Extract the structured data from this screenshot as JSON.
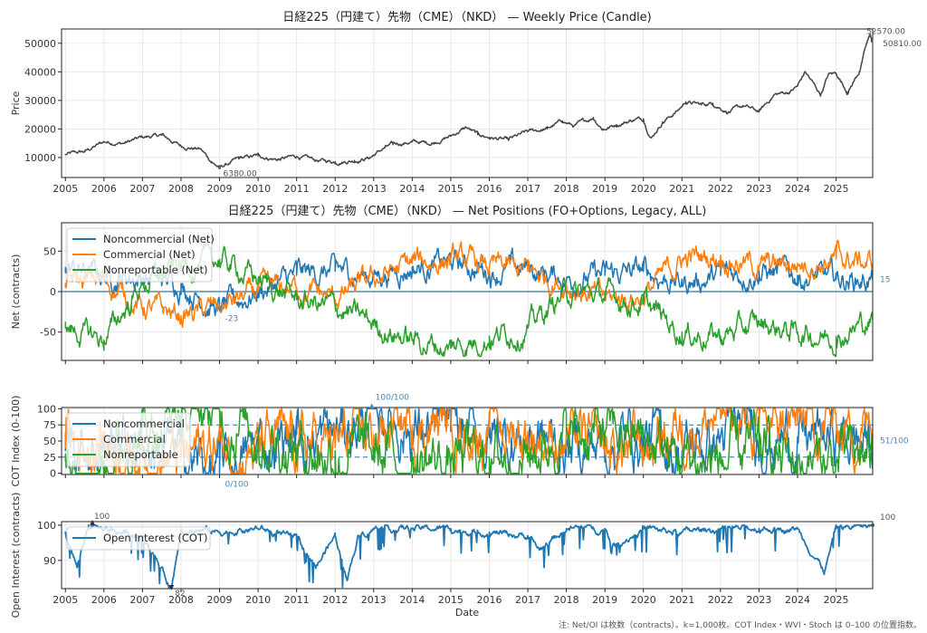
{
  "chart_data": [
    {
      "id": "price",
      "type": "line",
      "title": "日経225（円建て）先物（CME）（NKD） — Weekly Price (Candle)",
      "ylabel": "Price",
      "xlim": [
        2004.9,
        2025.95
      ],
      "ylim": [
        3000,
        55000
      ],
      "yticks": [
        10000,
        20000,
        30000,
        40000,
        50000
      ],
      "x_ticks": [
        "2005",
        "2006",
        "2007",
        "2008",
        "2009",
        "2010",
        "2011",
        "2012",
        "2013",
        "2014",
        "2015",
        "2016",
        "2017",
        "2018",
        "2019",
        "2020",
        "2021",
        "2022",
        "2023",
        "2024",
        "2025"
      ],
      "grid": true,
      "color": "#444444",
      "series": [
        {
          "values_approx": [
            [
              2005.0,
              11000
            ],
            [
              2005.5,
              12000
            ],
            [
              2006.0,
              15500
            ],
            [
              2006.5,
              15000
            ],
            [
              2007.0,
              17000
            ],
            [
              2007.5,
              17800
            ],
            [
              2008.0,
              14000
            ],
            [
              2008.5,
              13000
            ],
            [
              2008.8,
              8500
            ],
            [
              2009.0,
              6380
            ],
            [
              2009.5,
              9500
            ],
            [
              2010.0,
              10600
            ],
            [
              2010.5,
              9300
            ],
            [
              2011.0,
              10400
            ],
            [
              2011.5,
              9000
            ],
            [
              2012.0,
              8500
            ],
            [
              2012.5,
              9000
            ],
            [
              2012.9,
              10000
            ],
            [
              2013.3,
              13500
            ],
            [
              2013.5,
              14500
            ],
            [
              2014.0,
              15500
            ],
            [
              2014.5,
              15000
            ],
            [
              2015.0,
              17500
            ],
            [
              2015.4,
              20500
            ],
            [
              2015.7,
              18000
            ],
            [
              2016.0,
              17000
            ],
            [
              2016.5,
              16000
            ],
            [
              2017.0,
              19000
            ],
            [
              2017.5,
              20000
            ],
            [
              2017.9,
              22800
            ],
            [
              2018.2,
              21000
            ],
            [
              2018.7,
              24000
            ],
            [
              2018.95,
              20000
            ],
            [
              2019.3,
              21500
            ],
            [
              2019.8,
              23500
            ],
            [
              2020.0,
              23500
            ],
            [
              2020.2,
              17000
            ],
            [
              2020.5,
              22500
            ],
            [
              2020.9,
              26500
            ],
            [
              2021.1,
              29500
            ],
            [
              2021.5,
              28500
            ],
            [
              2021.8,
              29000
            ],
            [
              2022.2,
              26000
            ],
            [
              2022.6,
              28000
            ],
            [
              2023.0,
              26000
            ],
            [
              2023.4,
              32000
            ],
            [
              2023.8,
              33000
            ],
            [
              2024.0,
              35000
            ],
            [
              2024.2,
              40000
            ],
            [
              2024.6,
              32000
            ],
            [
              2024.8,
              39000
            ],
            [
              2025.0,
              39500
            ],
            [
              2025.3,
              33000
            ],
            [
              2025.6,
              40000
            ],
            [
              2025.8,
              50000
            ],
            [
              2025.88,
              52570
            ],
            [
              2025.93,
              50810
            ]
          ]
        }
      ],
      "annotations": [
        {
          "x": 2009.0,
          "y": 6380,
          "text": "6380.00"
        },
        {
          "x": 2025.88,
          "y": 52570,
          "text": "52570.00"
        },
        {
          "x": 2025.93,
          "y": 50810,
          "text": "50810.00"
        }
      ]
    },
    {
      "id": "net",
      "type": "line",
      "title": "日経225（円建て）先物（CME）（NKD） — Net Positions (FO+Options, Legacy, ALL)",
      "ylabel": "Net (contracts)",
      "xlim": [
        2004.9,
        2025.95
      ],
      "ylim": [
        -85,
        85
      ],
      "yticks": [
        -50,
        0,
        50
      ],
      "grid": true,
      "legend": "upper-left",
      "hline": 0,
      "series": [
        {
          "name": "Noncommercial (Net)",
          "color": "#1f77b4",
          "values_approx": [
            [
              2005,
              30
            ],
            [
              2006,
              20
            ],
            [
              2007,
              18
            ],
            [
              2008,
              10
            ],
            [
              2009,
              -23
            ],
            [
              2010,
              0
            ],
            [
              2011,
              20
            ],
            [
              2012,
              25
            ],
            [
              2013,
              20
            ],
            [
              2014,
              30
            ],
            [
              2015,
              35
            ],
            [
              2016,
              25
            ],
            [
              2017,
              28
            ],
            [
              2018,
              15
            ],
            [
              2019,
              20
            ],
            [
              2020,
              25
            ],
            [
              2021,
              10
            ],
            [
              2022,
              20
            ],
            [
              2023,
              25
            ],
            [
              2024,
              20
            ],
            [
              2025,
              15
            ],
            [
              2025.95,
              15
            ]
          ]
        },
        {
          "name": "Commercial (Net)",
          "color": "#ff7f0e",
          "values_approx": [
            [
              2005,
              10
            ],
            [
              2006,
              15
            ],
            [
              2007,
              -20
            ],
            [
              2008,
              -30
            ],
            [
              2009,
              -20
            ],
            [
              2010,
              0
            ],
            [
              2011,
              5
            ],
            [
              2012,
              -10
            ],
            [
              2013,
              15
            ],
            [
              2014,
              35
            ],
            [
              2015,
              40
            ],
            [
              2016,
              30
            ],
            [
              2017,
              25
            ],
            [
              2018,
              10
            ],
            [
              2019,
              -10
            ],
            [
              2020,
              -5
            ],
            [
              2021,
              40
            ],
            [
              2022,
              45
            ],
            [
              2023,
              30
            ],
            [
              2024,
              35
            ],
            [
              2025,
              40
            ],
            [
              2025.95,
              35
            ]
          ]
        },
        {
          "name": "Nonreportable (Net)",
          "color": "#2ca02c",
          "values_approx": [
            [
              2005,
              -45
            ],
            [
              2006,
              -60
            ],
            [
              2007,
              10
            ],
            [
              2008,
              30
            ],
            [
              2009,
              40
            ],
            [
              2010,
              15
            ],
            [
              2011,
              -10
            ],
            [
              2012,
              -20
            ],
            [
              2013,
              -40
            ],
            [
              2014,
              -60
            ],
            [
              2015,
              -70
            ],
            [
              2016,
              -55
            ],
            [
              2017,
              -45
            ],
            [
              2018,
              0
            ],
            [
              2019,
              -5
            ],
            [
              2020,
              -15
            ],
            [
              2021,
              -50
            ],
            [
              2022,
              -55
            ],
            [
              2023,
              -40
            ],
            [
              2024,
              -50
            ],
            [
              2025,
              -55
            ],
            [
              2025.95,
              -35
            ]
          ]
        }
      ],
      "annotations": [
        {
          "x": 2009.0,
          "y": -23,
          "text": "-23"
        },
        {
          "x": 2025.95,
          "y": 15,
          "text": "15"
        }
      ]
    },
    {
      "id": "cot",
      "type": "line",
      "ylabel": "COT Index (0-100)",
      "xlim": [
        2004.9,
        2025.95
      ],
      "ylim": [
        -2,
        102
      ],
      "yticks": [
        0,
        25,
        50,
        75,
        100
      ],
      "grid": true,
      "legend": "upper-left",
      "hlines_dashed": [
        25,
        75
      ],
      "series": [
        {
          "name": "Noncommercial",
          "color": "#1f77b4",
          "values_approx": [
            [
              2005,
              60
            ],
            [
              2006,
              45
            ],
            [
              2007,
              50
            ],
            [
              2008,
              30
            ],
            [
              2009,
              0
            ],
            [
              2010,
              40
            ],
            [
              2011,
              60
            ],
            [
              2012,
              55
            ],
            [
              2013,
              100
            ],
            [
              2014,
              70
            ],
            [
              2015,
              65
            ],
            [
              2016,
              55
            ],
            [
              2017,
              60
            ],
            [
              2018,
              40
            ],
            [
              2019,
              50
            ],
            [
              2020,
              60
            ],
            [
              2021,
              35
            ],
            [
              2022,
              55
            ],
            [
              2023,
              65
            ],
            [
              2024,
              50
            ],
            [
              2025,
              55
            ],
            [
              2025.95,
              51
            ]
          ]
        },
        {
          "name": "Commercial",
          "color": "#ff7f0e",
          "values_approx": [
            [
              2005,
              40
            ],
            [
              2006,
              55
            ],
            [
              2007,
              30
            ],
            [
              2008,
              20
            ],
            [
              2009,
              50
            ],
            [
              2010,
              35
            ],
            [
              2011,
              45
            ],
            [
              2012,
              40
            ],
            [
              2013,
              60
            ],
            [
              2014,
              75
            ],
            [
              2015,
              80
            ],
            [
              2016,
              70
            ],
            [
              2017,
              65
            ],
            [
              2018,
              55
            ],
            [
              2019,
              30
            ],
            [
              2020,
              40
            ],
            [
              2021,
              80
            ],
            [
              2022,
              85
            ],
            [
              2023,
              70
            ],
            [
              2024,
              75
            ],
            [
              2025,
              80
            ],
            [
              2025.95,
              70
            ]
          ]
        },
        {
          "name": "Nonreportable",
          "color": "#2ca02c",
          "values_approx": [
            [
              2005,
              30
            ],
            [
              2006,
              20
            ],
            [
              2007,
              70
            ],
            [
              2008,
              90
            ],
            [
              2009,
              95
            ],
            [
              2010,
              70
            ],
            [
              2011,
              40
            ],
            [
              2012,
              35
            ],
            [
              2013,
              25
            ],
            [
              2014,
              20
            ],
            [
              2015,
              15
            ],
            [
              2016,
              25
            ],
            [
              2017,
              30
            ],
            [
              2018,
              65
            ],
            [
              2019,
              60
            ],
            [
              2020,
              50
            ],
            [
              2021,
              20
            ],
            [
              2022,
              15
            ],
            [
              2023,
              30
            ],
            [
              2024,
              20
            ],
            [
              2025,
              15
            ],
            [
              2025.95,
              25
            ]
          ]
        }
      ],
      "annotations": [
        {
          "x": 2012.95,
          "y": 100,
          "text": "100/100"
        },
        {
          "x": 2009.0,
          "y": 0,
          "text": "0/100"
        },
        {
          "x": 2025.95,
          "y": 51,
          "text": "51/100"
        }
      ]
    },
    {
      "id": "oi",
      "type": "line",
      "ylabel": "Open Interest (contracts)",
      "xlabel": "Date",
      "xlim": [
        2004.9,
        2025.95
      ],
      "ylim": [
        82,
        101
      ],
      "yticks": [
        90,
        100
      ],
      "x_ticks": [
        "2005",
        "2006",
        "2007",
        "2008",
        "2009",
        "2010",
        "2011",
        "2012",
        "2013",
        "2014",
        "2015",
        "2016",
        "2017",
        "2018",
        "2019",
        "2020",
        "2021",
        "2022",
        "2023",
        "2024",
        "2025"
      ],
      "grid": true,
      "legend": "upper-left",
      "series": [
        {
          "name": "Open Interest (COT)",
          "color": "#1f77b4",
          "values_approx": [
            [
              2005,
              98
            ],
            [
              2005.3,
              88
            ],
            [
              2005.6,
              100
            ],
            [
              2006,
              99
            ],
            [
              2007,
              97
            ],
            [
              2007.75,
              82
            ],
            [
              2008,
              99
            ],
            [
              2009,
              98
            ],
            [
              2010,
              99
            ],
            [
              2011,
              96
            ],
            [
              2011.5,
              88
            ],
            [
              2012,
              97
            ],
            [
              2012.3,
              85
            ],
            [
              2012.6,
              97
            ],
            [
              2013,
              99
            ],
            [
              2014,
              99
            ],
            [
              2015,
              99
            ],
            [
              2016,
              98
            ],
            [
              2017,
              97
            ],
            [
              2017.3,
              93
            ],
            [
              2018,
              99
            ],
            [
              2019,
              99
            ],
            [
              2019.2,
              94
            ],
            [
              2020,
              99
            ],
            [
              2021,
              98
            ],
            [
              2022,
              99
            ],
            [
              2023,
              99
            ],
            [
              2024,
              99
            ],
            [
              2024.7,
              87
            ],
            [
              2025,
              99
            ],
            [
              2025.95,
              100
            ]
          ]
        }
      ],
      "annotations": [
        {
          "x": 2005.7,
          "y": 100,
          "text": "100"
        },
        {
          "x": 2007.75,
          "y": 82,
          "text": "82"
        },
        {
          "x": 2025.95,
          "y": 100,
          "text": "100"
        }
      ]
    }
  ],
  "footnote": "注: Net/OI は枚数（contracts）。k=1,000枚。COT Index・WVI・Stoch は 0–100 の位置指数。"
}
